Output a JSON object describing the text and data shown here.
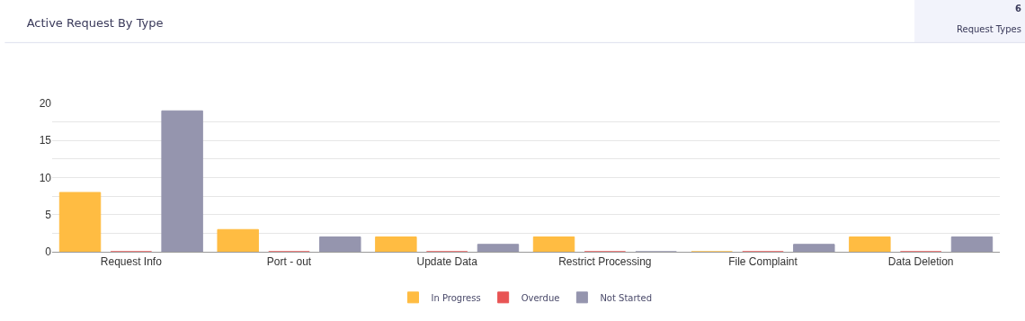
{
  "chart_data": {
    "type": "bar",
    "title": "Active Request By Type",
    "annotations": [
      "6",
      "Request Types"
    ],
    "categories": [
      "Request Info",
      "Port - out",
      "Update Data",
      "Restrict Processing",
      "File Complaint",
      "Data Deletion"
    ],
    "series": [
      {
        "name": "In Progress",
        "color": "#ffbc42",
        "values": [
          8,
          3,
          2,
          2,
          0,
          2
        ]
      },
      {
        "name": "Overdue",
        "color": "#e85454",
        "values": [
          0,
          0,
          0,
          0,
          0,
          0
        ]
      },
      {
        "name": "Not Started",
        "color": "#9595ae",
        "values": [
          19,
          2,
          1,
          0,
          1,
          2
        ]
      }
    ],
    "ylim": [
      0,
      20
    ],
    "yticks": [
      0,
      {
        "value": 2.5,
        "label": null
      },
      5,
      {
        "value": 7.5,
        "label": null
      },
      10,
      {
        "value": 12.5,
        "label": null
      },
      15,
      {
        "value": 17.5,
        "label": null
      },
      20
    ],
    "grid": "y",
    "legend": "bottom"
  }
}
